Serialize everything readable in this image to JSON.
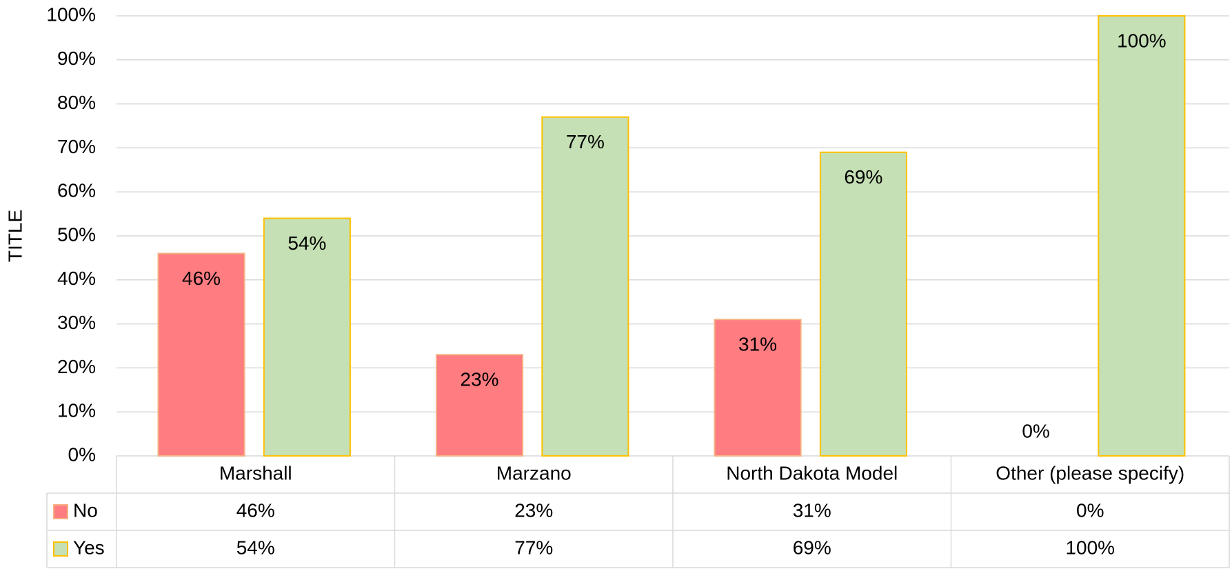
{
  "chart_data": {
    "type": "bar",
    "y_label": "TITLE",
    "categories": [
      "Marshall",
      "Marzano",
      "North Dakota Model",
      "Other (please specify)"
    ],
    "series": [
      {
        "name": "No",
        "color": "#ff7c80",
        "edge": "#f4b183",
        "values": [
          46,
          23,
          31,
          0
        ],
        "value_labels": [
          "46%",
          "23%",
          "31%",
          "0%"
        ]
      },
      {
        "name": "Yes",
        "color": "#c5e0b4",
        "edge": "#ffc000",
        "values": [
          54,
          77,
          69,
          100
        ],
        "value_labels": [
          "54%",
          "77%",
          "69%",
          "100%"
        ]
      }
    ],
    "ylim": [
      0,
      100
    ],
    "yticks": [
      {
        "value": 0,
        "label": "0%"
      },
      {
        "value": 10,
        "label": "10%"
      },
      {
        "value": 20,
        "label": "20%"
      },
      {
        "value": 30,
        "label": "30%"
      },
      {
        "value": 40,
        "label": "40%"
      },
      {
        "value": 50,
        "label": "50%"
      },
      {
        "value": 60,
        "label": "60%"
      },
      {
        "value": 70,
        "label": "70%"
      },
      {
        "value": 80,
        "label": "80%"
      },
      {
        "value": 90,
        "label": "90%"
      },
      {
        "value": 100,
        "label": "100%"
      }
    ],
    "grid": true
  }
}
